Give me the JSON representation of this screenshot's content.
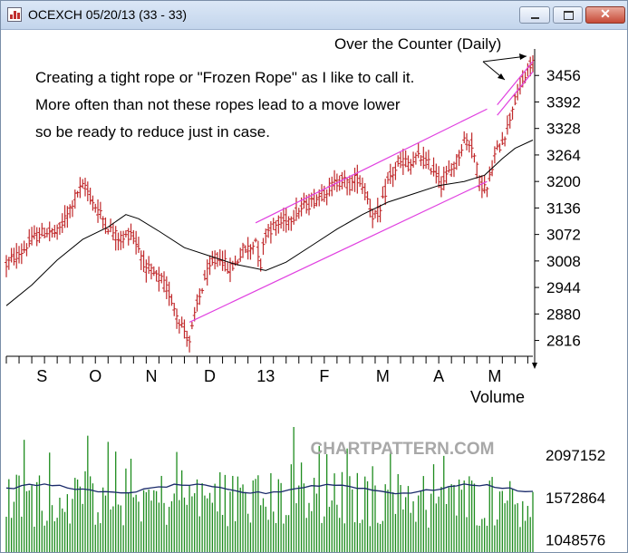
{
  "window": {
    "title": "OCEXCH 05/20/13 (33 - 33)",
    "min_glyph": "",
    "max_glyph": "",
    "close_glyph": "✕"
  },
  "annotations": {
    "chart_label": "Over the Counter (Daily)",
    "comment_lines": [
      "Creating a tight rope or \"Frozen Rope\" as I like to call it.",
      "More often than not these ropes lead to a move lower",
      "so be ready to reduce just in case."
    ],
    "watermark": "CHARTPATTERN.COM",
    "volume_label": "Volume"
  },
  "colors": {
    "bars": "#c0282a",
    "volume": "#1e8c1e",
    "moving_average": "#000000",
    "channel": "#e040e0"
  },
  "chart_data": [
    {
      "type": "ohlc",
      "title": "Over the Counter (Daily)",
      "ylim": [
        2780,
        3520
      ],
      "yticks": [
        2816,
        2880,
        2944,
        3008,
        3072,
        3136,
        3200,
        3264,
        3328,
        3392,
        3456
      ],
      "x_labels": [
        "S",
        "O",
        "N",
        "D",
        "13",
        "F",
        "M",
        "A",
        "M"
      ],
      "x_label_days": [
        14,
        35,
        57,
        80,
        102,
        125,
        148,
        170,
        192
      ],
      "x_range_days": [
        0,
        207
      ],
      "close_path": [
        [
          0,
          3000
        ],
        [
          6,
          3030
        ],
        [
          11,
          3065
        ],
        [
          16,
          3080
        ],
        [
          20,
          3075
        ],
        [
          24,
          3120
        ],
        [
          28,
          3175
        ],
        [
          31,
          3190
        ],
        [
          34,
          3150
        ],
        [
          37,
          3120
        ],
        [
          40,
          3090
        ],
        [
          43,
          3070
        ],
        [
          46,
          3060
        ],
        [
          49,
          3080
        ],
        [
          52,
          3040
        ],
        [
          55,
          2990
        ],
        [
          58,
          2975
        ],
        [
          61,
          2960
        ],
        [
          64,
          2930
        ],
        [
          67,
          2880
        ],
        [
          70,
          2840
        ],
        [
          72,
          2815
        ],
        [
          75,
          2900
        ],
        [
          78,
          2965
        ],
        [
          81,
          3000
        ],
        [
          84,
          3020
        ],
        [
          87,
          2990
        ],
        [
          90,
          3000
        ],
        [
          93,
          3035
        ],
        [
          96,
          3040
        ],
        [
          98,
          3060
        ],
        [
          100,
          3000
        ],
        [
          102,
          3080
        ],
        [
          105,
          3090
        ],
        [
          108,
          3100
        ],
        [
          111,
          3110
        ],
        [
          114,
          3125
        ],
        [
          117,
          3140
        ],
        [
          120,
          3150
        ],
        [
          123,
          3165
        ],
        [
          126,
          3180
        ],
        [
          129,
          3195
        ],
        [
          132,
          3205
        ],
        [
          135,
          3190
        ],
        [
          138,
          3210
        ],
        [
          141,
          3180
        ],
        [
          144,
          3120
        ],
        [
          147,
          3125
        ],
        [
          150,
          3200
        ],
        [
          153,
          3230
        ],
        [
          156,
          3250
        ],
        [
          159,
          3240
        ],
        [
          162,
          3260
        ],
        [
          165,
          3245
        ],
        [
          168,
          3230
        ],
        [
          171,
          3195
        ],
        [
          174,
          3220
        ],
        [
          177,
          3250
        ],
        [
          180,
          3300
        ],
        [
          183,
          3290
        ],
        [
          186,
          3200
        ],
        [
          189,
          3180
        ],
        [
          192,
          3260
        ],
        [
          195,
          3300
        ],
        [
          197,
          3330
        ],
        [
          199,
          3380
        ],
        [
          201,
          3410
        ],
        [
          203,
          3440
        ],
        [
          205,
          3465
        ],
        [
          207,
          3490
        ]
      ],
      "moving_average_path": [
        [
          0,
          2900
        ],
        [
          10,
          2950
        ],
        [
          20,
          3010
        ],
        [
          30,
          3060
        ],
        [
          40,
          3090
        ],
        [
          47,
          3120
        ],
        [
          52,
          3110
        ],
        [
          60,
          3080
        ],
        [
          70,
          3040
        ],
        [
          80,
          3020
        ],
        [
          90,
          3000
        ],
        [
          102,
          2985
        ],
        [
          110,
          3005
        ],
        [
          120,
          3045
        ],
        [
          130,
          3085
        ],
        [
          140,
          3120
        ],
        [
          150,
          3150
        ],
        [
          160,
          3170
        ],
        [
          170,
          3190
        ],
        [
          180,
          3200
        ],
        [
          188,
          3215
        ],
        [
          195,
          3255
        ],
        [
          200,
          3280
        ],
        [
          207,
          3300
        ]
      ],
      "channels": [
        {
          "from": [
            72,
            2860
          ],
          "to": [
            189,
            3200
          ]
        },
        {
          "from": [
            98,
            3100
          ],
          "to": [
            189,
            3375
          ]
        },
        {
          "from": [
            193,
            3385
          ],
          "to": [
            207,
            3490
          ]
        },
        {
          "from": [
            193,
            3360
          ],
          "to": [
            207,
            3465
          ]
        }
      ]
    },
    {
      "type": "bar",
      "title": "Volume",
      "yticks": [
        1048576,
        1572864,
        2097152
      ],
      "ylim": [
        900000,
        2600000
      ],
      "x_range_days": [
        0,
        207
      ],
      "moving_average": 1680000
    }
  ]
}
